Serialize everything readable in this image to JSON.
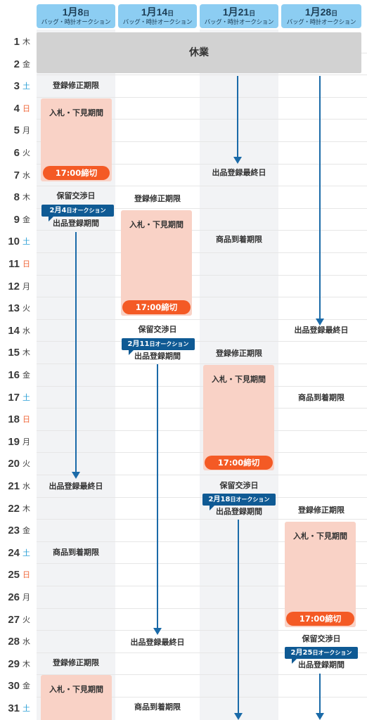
{
  "columns": [
    {
      "date": "1月8",
      "date_num": "1月8",
      "unit": "日",
      "sub": "バッグ・時計オークション"
    },
    {
      "date": "1月14",
      "unit": "日",
      "sub": "バッグ・時計オークション"
    },
    {
      "date": "1月21",
      "unit": "日",
      "sub": "バッグ・時計オークション"
    },
    {
      "date": "1月28",
      "unit": "日",
      "sub": "バッグ・時計オークション"
    }
  ],
  "rows": [
    {
      "n": "1",
      "w": "木"
    },
    {
      "n": "2",
      "w": "金"
    },
    {
      "n": "3",
      "w": "土"
    },
    {
      "n": "4",
      "w": "日"
    },
    {
      "n": "5",
      "w": "月"
    },
    {
      "n": "6",
      "w": "火"
    },
    {
      "n": "7",
      "w": "水"
    },
    {
      "n": "8",
      "w": "木"
    },
    {
      "n": "9",
      "w": "金"
    },
    {
      "n": "10",
      "w": "土"
    },
    {
      "n": "11",
      "w": "日"
    },
    {
      "n": "12",
      "w": "月"
    },
    {
      "n": "13",
      "w": "火"
    },
    {
      "n": "14",
      "w": "水"
    },
    {
      "n": "15",
      "w": "木"
    },
    {
      "n": "16",
      "w": "金"
    },
    {
      "n": "17",
      "w": "土"
    },
    {
      "n": "18",
      "w": "日"
    },
    {
      "n": "19",
      "w": "月"
    },
    {
      "n": "20",
      "w": "火"
    },
    {
      "n": "21",
      "w": "水"
    },
    {
      "n": "22",
      "w": "木"
    },
    {
      "n": "23",
      "w": "金"
    },
    {
      "n": "24",
      "w": "土"
    },
    {
      "n": "25",
      "w": "日"
    },
    {
      "n": "26",
      "w": "月"
    },
    {
      "n": "27",
      "w": "火"
    },
    {
      "n": "28",
      "w": "水"
    },
    {
      "n": "29",
      "w": "木"
    },
    {
      "n": "30",
      "w": "金"
    },
    {
      "n": "31",
      "w": "土"
    }
  ],
  "closed_label": "休業",
  "labels": {
    "edit_deadline": "登録修正期限",
    "bid_period": "入札・下見期間",
    "deadline": "17:00締切",
    "hold_negotiation": "保留交渉日",
    "listing_period": "出品登録期間",
    "listing_final": "出品登録最終日",
    "arrival_deadline": "商品到着期限"
  },
  "tags": [
    {
      "month": "2月",
      "day": "4",
      "unit": "日",
      "suffix": "オークション"
    },
    {
      "month": "2月",
      "day": "11",
      "unit": "日",
      "suffix": "オークション"
    },
    {
      "month": "2月",
      "day": "18",
      "unit": "日",
      "suffix": "オークション"
    },
    {
      "month": "2月",
      "day": "25",
      "unit": "日",
      "suffix": "オークション"
    }
  ],
  "colors": {
    "header": "#8ccdf2",
    "bid_block": "#f9d2c6",
    "deadline_pill": "#f45a25",
    "auction_tag": "#0f5a94",
    "arrow": "#1a6aa8",
    "saturday": "#2a9fd6",
    "sunday": "#f06a3c",
    "closed": "#d2d2d2"
  }
}
